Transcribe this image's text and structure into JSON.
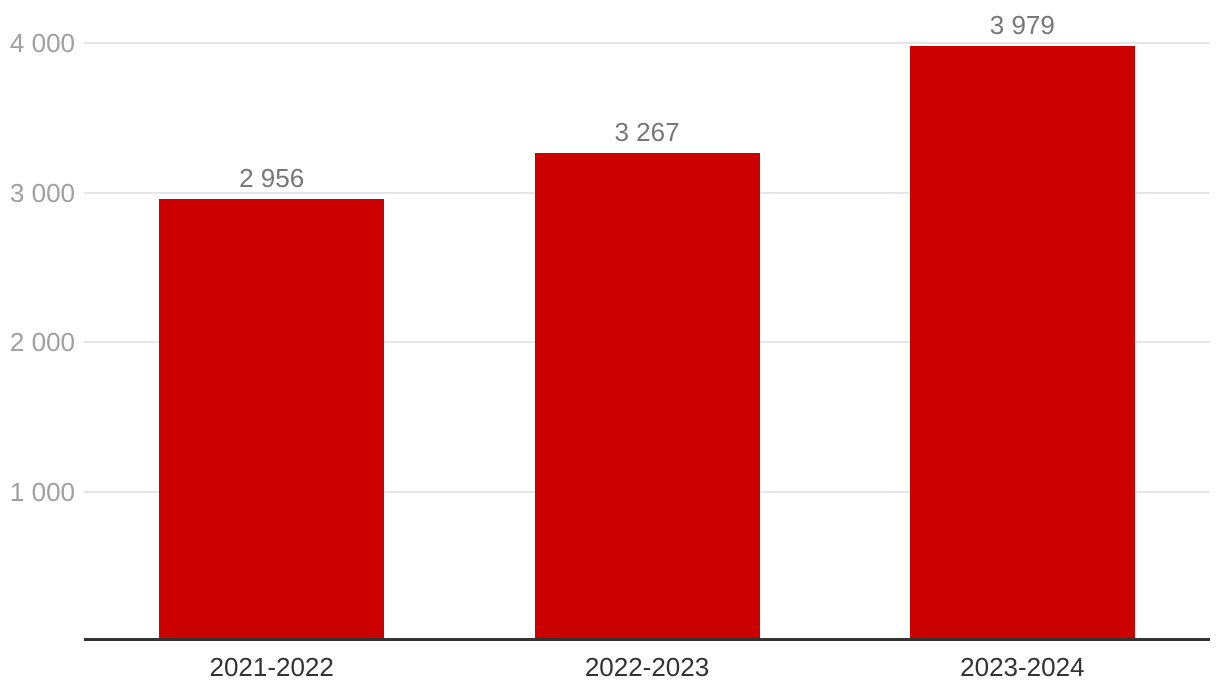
{
  "chart_data": {
    "type": "bar",
    "title": "",
    "categories": [
      "2021-2022",
      "2022-2023",
      "2023-2024"
    ],
    "values": [
      2956,
      3267,
      3979
    ],
    "value_labels": [
      "2 956",
      "3 267",
      "3 979"
    ],
    "y_ticks": [
      {
        "value": 4000,
        "label": "4 000"
      },
      {
        "value": 3000,
        "label": "3 000"
      },
      {
        "value": 2000,
        "label": "2 000"
      },
      {
        "value": 1000,
        "label": "1 000"
      }
    ],
    "ylim": [
      0,
      4000
    ],
    "grid": true,
    "legend": false,
    "colors": {
      "bar": "#cc0000",
      "gridline": "#e6e6e6",
      "axis_line": "#333333",
      "y_tick_text": "#a0a0a0",
      "value_label_text": "#787878",
      "category_text": "#333333",
      "background": "#ffffff"
    }
  }
}
